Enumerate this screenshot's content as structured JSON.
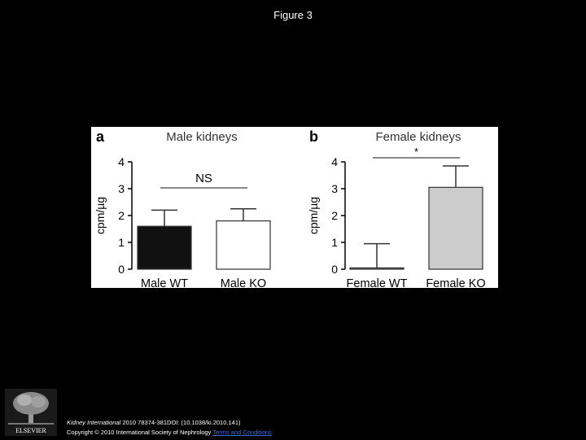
{
  "page": {
    "title": "Figure 3"
  },
  "chart_data": [
    {
      "type": "bar",
      "panel_label": "a",
      "title": "Male kidneys",
      "ylabel": "cpm/µg",
      "ylim": [
        0,
        4
      ],
      "yticks": [
        "0",
        "1",
        "2",
        "3",
        "4"
      ],
      "categories": [
        "Male WT",
        "Male KO"
      ],
      "values": [
        1.6,
        1.8
      ],
      "errors": [
        0.6,
        0.45
      ],
      "colors": [
        "#111111",
        "#ffffff"
      ],
      "significance": "NS"
    },
    {
      "type": "bar",
      "panel_label": "b",
      "title": "Female kidneys",
      "ylabel": "cpm/µg",
      "ylim": [
        0,
        4
      ],
      "yticks": [
        "0",
        "1",
        "2",
        "3",
        "4"
      ],
      "categories": [
        "Female WT",
        "Female KO"
      ],
      "values": [
        0.05,
        3.05
      ],
      "errors": [
        0.9,
        0.8
      ],
      "colors": [
        "#666666",
        "#cccccc"
      ],
      "significance": "*"
    }
  ],
  "footer": {
    "logo_text": "ELSEVIER",
    "journal": "Kidney International",
    "citation": "2010 78374-381DOI: (10.1038/ki.2010.141)",
    "copyright": "Copyright © 2010 International Society of Nephrology",
    "terms_link": "Terms and Conditions"
  }
}
